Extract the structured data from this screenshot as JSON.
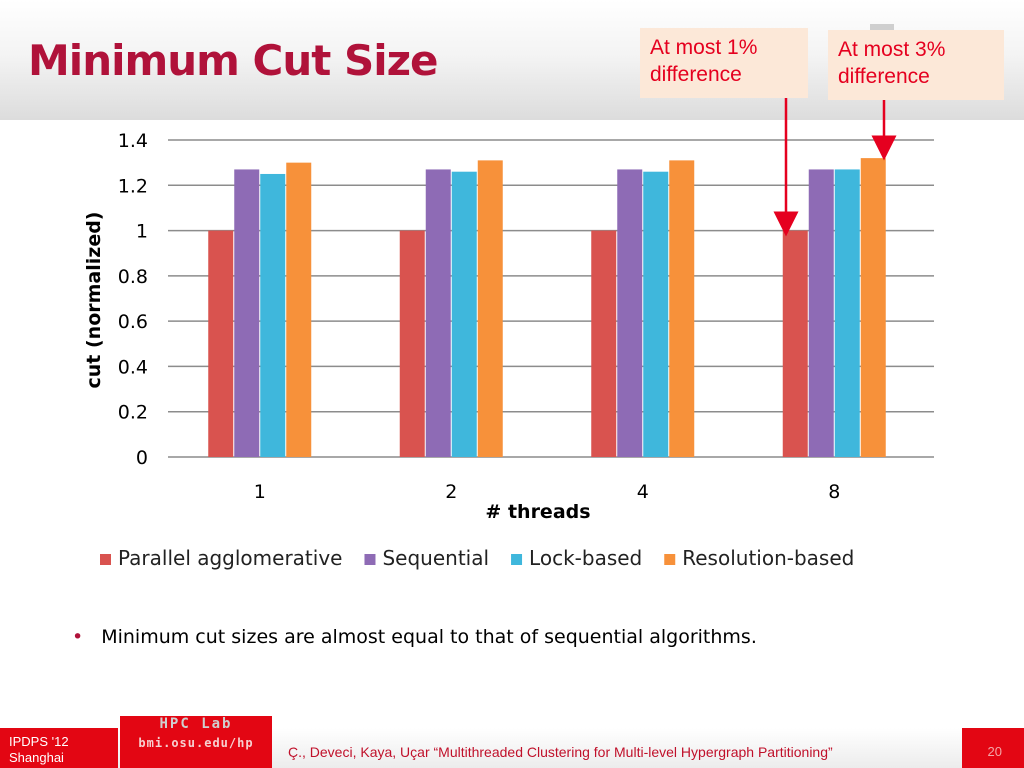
{
  "slide": {
    "title": "Minimum Cut Size",
    "callouts": [
      {
        "text_line1": "At most 1%",
        "text_line2": "difference"
      },
      {
        "text_line1": "At most 3%",
        "text_line2": "difference"
      }
    ],
    "bullet": "Minimum cut sizes are almost equal to that of sequential algorithms."
  },
  "footer": {
    "conference_line1": "IPDPS '12",
    "conference_line2": "Shanghai",
    "lab_line1": "HPC Lab",
    "lab_line2": "bmi.osu.edu/hp",
    "citation": "Ç., Deveci, Kaya, Uçar “Multithreaded Clustering for Multi-level Hypergraph Partitioning”",
    "page_number": "20"
  },
  "colors": {
    "title": "#b0123a",
    "callout_text": "#e5001f",
    "callout_bg": "#fce8d8",
    "footer_red": "#e30613"
  },
  "chart_data": {
    "type": "bar",
    "title": "",
    "xlabel": "# threads",
    "ylabel": "cut (normalized)",
    "categories": [
      "1",
      "2",
      "4",
      "8"
    ],
    "ylim": [
      0,
      1.4
    ],
    "yticks": [
      "0",
      "0.2",
      "0.4",
      "0.6",
      "0.8",
      "1",
      "1.2",
      "1.4"
    ],
    "grid": true,
    "legend_position": "bottom",
    "series": [
      {
        "name": "Parallel agglomerative",
        "color": "#d9534f",
        "values": [
          1.0,
          1.0,
          1.0,
          1.0
        ]
      },
      {
        "name": "Sequential",
        "color": "#8e6bb5",
        "values": [
          1.27,
          1.27,
          1.27,
          1.27
        ]
      },
      {
        "name": "Lock-based",
        "color": "#3fb7dc",
        "values": [
          1.25,
          1.26,
          1.26,
          1.27
        ]
      },
      {
        "name": "Resolution-based",
        "color": "#f7913a",
        "values": [
          1.3,
          1.31,
          1.31,
          1.32
        ]
      }
    ]
  }
}
